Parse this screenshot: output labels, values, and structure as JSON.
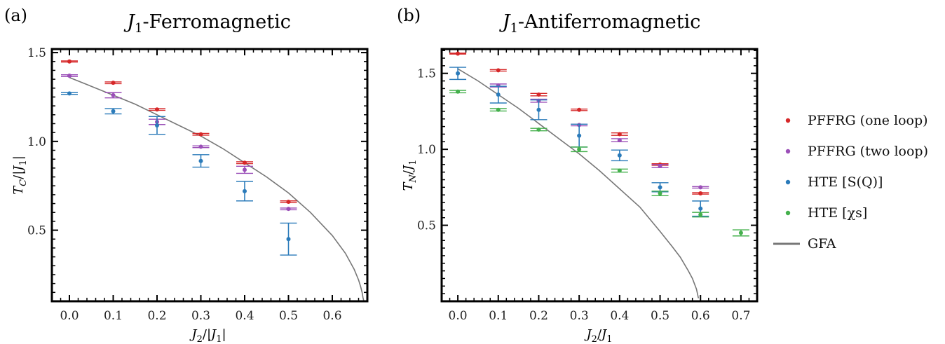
{
  "colors": {
    "pffrg_one": "#d62728",
    "pffrg_two": "#9b4fb8",
    "hte_s": "#2b7bba",
    "hte_chi": "#44b04c",
    "gfa": "#777777"
  },
  "legend": {
    "items": [
      {
        "label": "PFFRG (one loop)",
        "color_key": "pffrg_one",
        "kind": "marker"
      },
      {
        "label": "PFFRG (two loop)",
        "color_key": "pffrg_two",
        "kind": "marker"
      },
      {
        "label": "HTE [S(Q)]",
        "color_key": "hte_s",
        "kind": "marker"
      },
      {
        "label": "HTE [χs]",
        "color_key": "hte_chi",
        "kind": "marker"
      },
      {
        "label": "GFA",
        "color_key": "gfa",
        "kind": "line"
      }
    ]
  },
  "chart_data": [
    {
      "type": "scatter",
      "panel_label": "(a)",
      "title": "J1-Ferromagnetic",
      "xlabel": "J2/|J1|",
      "ylabel": "TC/|J1|",
      "xlim": [
        -0.04,
        0.68
      ],
      "ylim": [
        0.1,
        1.52
      ],
      "xticks": [
        0.0,
        0.1,
        0.2,
        0.3,
        0.4,
        0.5,
        0.6
      ],
      "yticks": [
        0.5,
        1.0,
        1.5
      ],
      "xticklabels": [
        "0.0",
        "0.1",
        "0.2",
        "0.3",
        "0.4",
        "0.5",
        "0.6"
      ],
      "yticklabels": [
        "0.5",
        "1.0",
        "1.5"
      ],
      "grid": false,
      "series": [
        {
          "name": "PFFRG (one loop)",
          "color_key": "pffrg_one",
          "points": [
            {
              "x": 0.0,
              "y": 1.45,
              "err": 0.003
            },
            {
              "x": 0.1,
              "y": 1.33,
              "err": 0.005
            },
            {
              "x": 0.2,
              "y": 1.18,
              "err": 0.005
            },
            {
              "x": 0.3,
              "y": 1.04,
              "err": 0.005
            },
            {
              "x": 0.4,
              "y": 0.88,
              "err": 0.005
            },
            {
              "x": 0.5,
              "y": 0.66,
              "err": 0.005
            }
          ]
        },
        {
          "name": "PFFRG (two loop)",
          "color_key": "pffrg_two",
          "points": [
            {
              "x": 0.0,
              "y": 1.37,
              "err": 0.005
            },
            {
              "x": 0.1,
              "y": 1.26,
              "err": 0.015
            },
            {
              "x": 0.2,
              "y": 1.11,
              "err": 0.015
            },
            {
              "x": 0.3,
              "y": 0.97,
              "err": 0.005
            },
            {
              "x": 0.4,
              "y": 0.84,
              "err": 0.02
            },
            {
              "x": 0.5,
              "y": 0.62,
              "err": 0.005
            }
          ]
        },
        {
          "name": "HTE [S(Q)]",
          "color_key": "hte_s",
          "points": [
            {
              "x": 0.0,
              "y": 1.27,
              "err": 0.005
            },
            {
              "x": 0.1,
              "y": 1.17,
              "err": 0.015
            },
            {
              "x": 0.2,
              "y": 1.09,
              "err": 0.05
            },
            {
              "x": 0.3,
              "y": 0.89,
              "err": 0.035
            },
            {
              "x": 0.4,
              "y": 0.72,
              "err": 0.055
            },
            {
              "x": 0.5,
              "y": 0.45,
              "err": 0.09
            }
          ]
        }
      ],
      "line": {
        "name": "GFA",
        "color_key": "gfa",
        "x": [
          0.0,
          0.05,
          0.1,
          0.15,
          0.2,
          0.25,
          0.3,
          0.35,
          0.4,
          0.45,
          0.5,
          0.55,
          0.6,
          0.63,
          0.65,
          0.66,
          0.665,
          0.668,
          0.67,
          0.672
        ],
        "y": [
          1.36,
          1.31,
          1.26,
          1.21,
          1.15,
          1.09,
          1.03,
          0.96,
          0.88,
          0.8,
          0.71,
          0.6,
          0.47,
          0.37,
          0.28,
          0.22,
          0.18,
          0.15,
          0.12,
          0.1
        ]
      }
    },
    {
      "type": "scatter",
      "panel_label": "(b)",
      "title": "J1-Antiferromagnetic",
      "xlabel": "J2/J1",
      "ylabel": "TN/J1",
      "xlim": [
        -0.04,
        0.74
      ],
      "ylim": [
        0.0,
        1.66
      ],
      "xticks": [
        0.0,
        0.1,
        0.2,
        0.3,
        0.4,
        0.5,
        0.6,
        0.7
      ],
      "yticks": [
        0.5,
        1.0,
        1.5
      ],
      "xticklabels": [
        "0.0",
        "0.1",
        "0.2",
        "0.3",
        "0.4",
        "0.5",
        "0.6",
        "0.7"
      ],
      "yticklabels": [
        "0.5",
        "1.0",
        "1.5"
      ],
      "grid": false,
      "series": [
        {
          "name": "PFFRG (one loop)",
          "color_key": "pffrg_one",
          "points": [
            {
              "x": 0.0,
              "y": 1.63,
              "err": 0.003
            },
            {
              "x": 0.1,
              "y": 1.52,
              "err": 0.005
            },
            {
              "x": 0.2,
              "y": 1.36,
              "err": 0.008
            },
            {
              "x": 0.3,
              "y": 1.26,
              "err": 0.005
            },
            {
              "x": 0.4,
              "y": 1.1,
              "err": 0.008
            },
            {
              "x": 0.5,
              "y": 0.9,
              "err": 0.005
            },
            {
              "x": 0.6,
              "y": 0.71,
              "err": 0.005
            }
          ]
        },
        {
          "name": "PFFRG (two loop)",
          "color_key": "pffrg_two",
          "points": [
            {
              "x": 0.1,
              "y": 1.42,
              "err": 0.01
            },
            {
              "x": 0.2,
              "y": 1.32,
              "err": 0.01
            },
            {
              "x": 0.3,
              "y": 1.16,
              "err": 0.005
            },
            {
              "x": 0.4,
              "y": 1.06,
              "err": 0.01
            },
            {
              "x": 0.5,
              "y": 0.89,
              "err": 0.01
            },
            {
              "x": 0.6,
              "y": 0.75,
              "err": 0.005
            }
          ]
        },
        {
          "name": "HTE [S(Q)]",
          "color_key": "hte_s",
          "points": [
            {
              "x": 0.0,
              "y": 1.5,
              "err": 0.04
            },
            {
              "x": 0.1,
              "y": 1.36,
              "err": 0.055
            },
            {
              "x": 0.2,
              "y": 1.26,
              "err": 0.065
            },
            {
              "x": 0.3,
              "y": 1.09,
              "err": 0.075
            },
            {
              "x": 0.4,
              "y": 0.96,
              "err": 0.035
            },
            {
              "x": 0.5,
              "y": 0.75,
              "err": 0.03
            },
            {
              "x": 0.6,
              "y": 0.61,
              "err": 0.05
            }
          ]
        },
        {
          "name": "HTE [χs]",
          "color_key": "hte_chi",
          "points": [
            {
              "x": 0.0,
              "y": 1.38,
              "err": 0.008
            },
            {
              "x": 0.1,
              "y": 1.26,
              "err": 0.008
            },
            {
              "x": 0.2,
              "y": 1.13,
              "err": 0.008
            },
            {
              "x": 0.3,
              "y": 1.0,
              "err": 0.015
            },
            {
              "x": 0.4,
              "y": 0.86,
              "err": 0.01
            },
            {
              "x": 0.5,
              "y": 0.71,
              "err": 0.015
            },
            {
              "x": 0.6,
              "y": 0.57,
              "err": 0.015
            },
            {
              "x": 0.7,
              "y": 0.45,
              "err": 0.02
            }
          ]
        }
      ],
      "line": {
        "name": "GFA",
        "color_key": "gfa",
        "x": [
          0.0,
          0.05,
          0.1,
          0.15,
          0.2,
          0.25,
          0.3,
          0.35,
          0.4,
          0.45,
          0.5,
          0.53,
          0.55,
          0.57,
          0.58,
          0.59,
          0.595
        ],
        "y": [
          1.53,
          1.45,
          1.36,
          1.27,
          1.17,
          1.07,
          0.97,
          0.86,
          0.74,
          0.62,
          0.46,
          0.36,
          0.29,
          0.2,
          0.15,
          0.08,
          0.02
        ]
      }
    }
  ]
}
